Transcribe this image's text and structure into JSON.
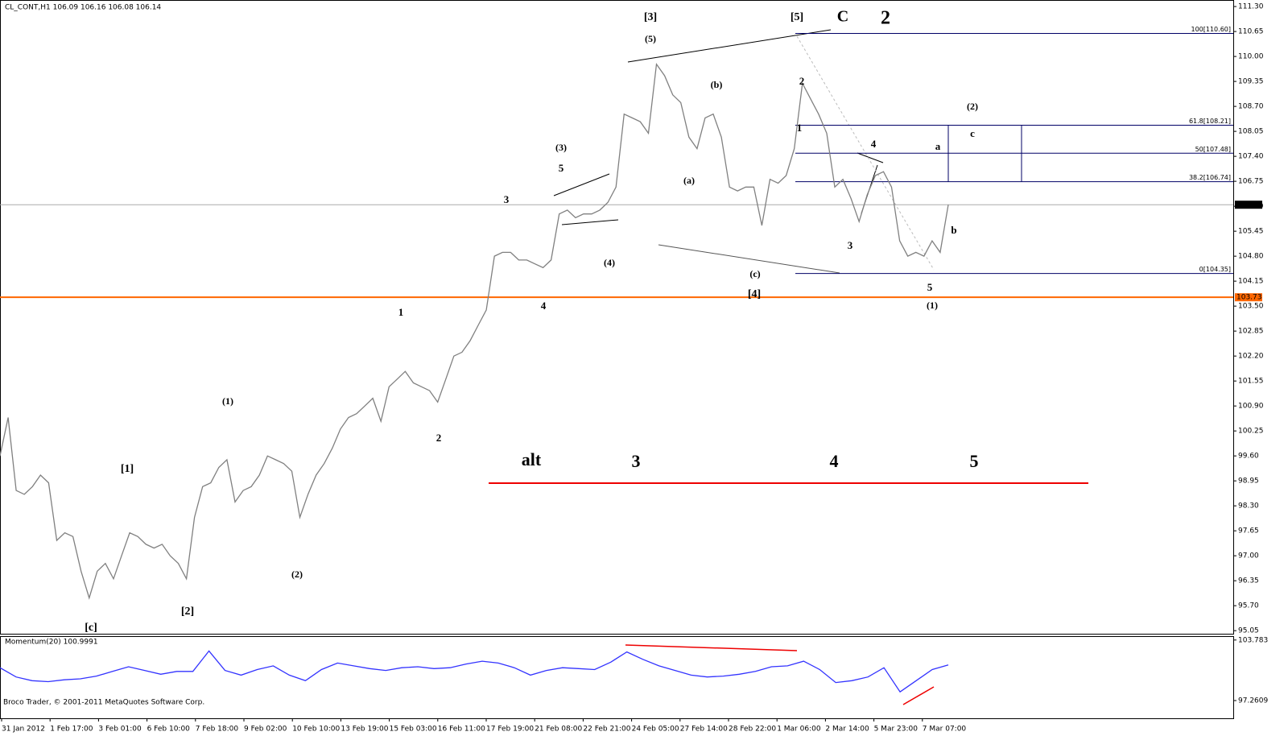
{
  "header": "CL_CONT,H1  106.09 106.16 106.08 106.14",
  "footer": "Broco Trader, © 2001-2011 MetaQuotes Software Corp.",
  "chart_data": [
    {
      "type": "line",
      "x_labels": [
        "31 Jan 2012",
        "1 Feb 17:00",
        "3 Feb 01:00",
        "6 Feb 10:00",
        "7 Feb 18:00",
        "9 Feb 02:00",
        "10 Feb 10:00",
        "13 Feb 19:00",
        "15 Feb 03:00",
        "16 Feb 11:00",
        "17 Feb 19:00",
        "21 Feb 08:00",
        "22 Feb 21:00",
        "24 Feb 05:00",
        "27 Feb 14:00",
        "28 Feb 22:00",
        "1 Mar 06:00",
        "2 Mar 14:00",
        "5 Mar 23:00",
        "7 Mar 07:00"
      ],
      "series": [
        {
          "color": "#808080",
          "values": [
            99.6,
            100.6,
            98.7,
            98.6,
            98.8,
            99.1,
            98.9,
            97.4,
            97.6,
            97.5,
            96.6,
            95.9,
            96.6,
            96.8,
            96.4,
            97.0,
            97.6,
            97.5,
            97.3,
            97.2,
            97.3,
            97.0,
            96.8,
            96.4,
            98.0,
            98.8,
            98.9,
            99.3,
            99.5,
            98.4,
            98.7,
            98.8,
            99.1,
            99.6,
            99.5,
            99.4,
            99.2,
            98.0,
            98.6,
            99.1,
            99.4,
            99.8,
            100.3,
            100.6,
            100.7,
            100.9,
            101.1,
            100.5,
            101.4,
            101.6,
            101.8,
            101.5,
            101.4,
            101.3,
            101.0,
            101.6,
            102.2,
            102.3,
            102.6,
            103.0,
            103.4,
            104.8,
            104.9,
            104.9,
            104.7,
            104.7,
            104.6,
            104.5,
            104.7,
            105.9,
            106.0,
            105.8,
            105.9,
            105.9,
            106.0,
            106.2,
            106.6,
            108.5,
            108.4,
            108.3,
            108.0,
            109.8,
            109.5,
            109.0,
            108.8,
            107.9,
            107.6,
            108.4,
            108.5,
            107.9,
            106.6,
            106.5,
            106.6,
            106.6,
            105.6,
            106.8,
            106.7,
            106.9,
            107.6,
            109.3,
            108.9,
            108.5,
            108.0,
            106.6,
            106.8,
            106.3,
            105.7,
            106.4,
            106.9,
            107.0,
            106.6,
            105.2,
            104.8,
            104.9,
            104.8,
            105.2,
            104.9,
            106.14
          ]
        }
      ],
      "ylim": [
        94.97,
        111.47
      ],
      "yticks": [
        {
          "value": 111.3,
          "label": "111.30"
        },
        110.65,
        {
          "value": 110.0,
          "label": "110.00"
        },
        109.35,
        {
          "value": 108.7,
          "label": "108.70"
        },
        108.05,
        {
          "value": 107.4,
          "label": "107.40"
        },
        106.75,
        {
          "value": 106.1,
          "label": "106.10"
        },
        105.45,
        {
          "value": 104.8,
          "label": "104.80"
        },
        104.15,
        {
          "value": 103.5,
          "label": "103.50"
        },
        102.85,
        {
          "value": 102.2,
          "label": "102.20"
        },
        101.55,
        {
          "value": 100.9,
          "label": "100.90"
        },
        100.25,
        {
          "value": 99.6,
          "label": "99.60"
        },
        98.95,
        {
          "value": 98.3,
          "label": "98.30"
        },
        97.65,
        {
          "value": 97.0,
          "label": "97.00"
        },
        96.35,
        {
          "value": 95.7,
          "label": "95.70"
        },
        95.05
      ],
      "current_price": 106.14,
      "support": 103.73,
      "levels": [
        {
          "label": "100[110.60]",
          "value": 110.6
        },
        {
          "label": "61.8[108.21]",
          "value": 108.21
        },
        {
          "label": "50[107.48]",
          "value": 107.48
        },
        {
          "label": "38.2[106.74]",
          "value": 106.74
        },
        {
          "label": "0[104.35]",
          "value": 104.35
        }
      ],
      "annotations": [
        {
          "text": "[3]",
          "color": "#0000cc"
        },
        {
          "text": "[5]",
          "color": "#0000cc"
        },
        {
          "text": "C",
          "color": "#006600"
        },
        {
          "text": "2",
          "color": "#ee0000"
        },
        {
          "text": "(5)",
          "color": "#ee0000"
        },
        {
          "text": "(b)",
          "color": "#ee0000"
        },
        {
          "text": "2",
          "color": "#006600"
        },
        {
          "text": "1",
          "color": "#006600"
        },
        {
          "text": "(2)",
          "color": "#ee0000"
        },
        {
          "text": "c",
          "color": "#006600"
        },
        {
          "text": "a",
          "color": "#006600"
        },
        {
          "text": "4",
          "color": "#006600"
        },
        {
          "text": "(3)",
          "color": "#ee0000"
        },
        {
          "text": "5",
          "color": "#006600"
        },
        {
          "text": "(a)",
          "color": "#ee0000"
        },
        {
          "text": "3",
          "color": "#006600"
        },
        {
          "text": "b",
          "color": "#006600"
        },
        {
          "text": "3",
          "color": "#006600"
        },
        {
          "text": "(4)",
          "color": "#ee0000"
        },
        {
          "text": "(c)",
          "color": "#ee0000"
        },
        {
          "text": "5",
          "color": "#006600"
        },
        {
          "text": "[4]",
          "color": "#0000cc"
        },
        {
          "text": "(1)",
          "color": "#ee0000"
        },
        {
          "text": "4",
          "color": "#006600"
        },
        {
          "text": "1",
          "color": "#006600"
        },
        {
          "text": "(1)",
          "color": "#ee0000"
        },
        {
          "text": "2",
          "color": "#006600"
        },
        {
          "text": "alt",
          "color": "#0000cc"
        },
        {
          "text": "3",
          "color": "#006600"
        },
        {
          "text": "4",
          "color": "#006600"
        },
        {
          "text": "5",
          "color": "#006600"
        },
        {
          "text": "[1]",
          "color": "#0000cc"
        },
        {
          "text": "(2)",
          "color": "#ee0000"
        },
        {
          "text": "[2]",
          "color": "#0000cc"
        },
        {
          "text": "[c]",
          "color": "#0000cc"
        }
      ]
    },
    {
      "type": "line",
      "title": "Momentum(20) 100.9991",
      "series": [
        {
          "color": "#3333ff",
          "values": [
            100.8,
            99.8,
            99.4,
            99.3,
            99.5,
            99.6,
            99.9,
            100.4,
            100.9,
            100.5,
            100.1,
            100.4,
            100.4,
            102.6,
            100.5,
            100.0,
            100.6,
            101.0,
            100.0,
            99.4,
            100.6,
            101.3,
            101.0,
            100.7,
            100.5,
            100.8,
            100.9,
            100.7,
            100.8,
            101.2,
            101.5,
            101.3,
            100.8,
            100.0,
            100.5,
            100.8,
            100.7,
            100.6,
            101.4,
            102.5,
            101.7,
            101.0,
            100.5,
            100.0,
            99.8,
            99.9,
            100.1,
            100.4,
            100.9,
            101.0,
            101.5,
            100.6,
            99.2,
            99.4,
            99.8,
            100.8,
            98.2,
            99.4,
            100.6,
            101.1
          ]
        }
      ],
      "ylim": [
        95.35,
        104.2
      ],
      "yticks": [
        103.783,
        97.2609
      ]
    }
  ]
}
